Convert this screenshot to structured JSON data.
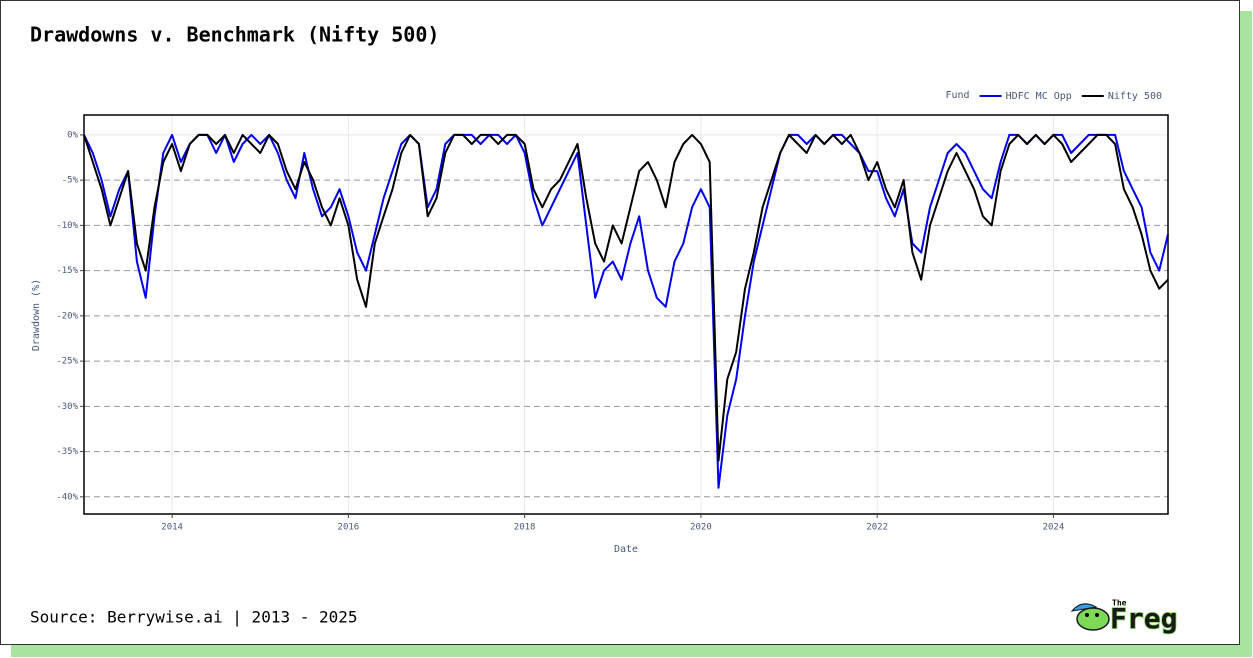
{
  "chart_data": {
    "type": "line",
    "title": "Drawdowns v. Benchmark (Nifty 500)",
    "x_label": "Date",
    "y_label": "Drawdown (%)",
    "legend_title": "Fund",
    "legend_position": "top-right",
    "grid": true,
    "xlim": [
      2013.0,
      2025.3
    ],
    "xticks": [
      2014,
      2016,
      2018,
      2020,
      2022,
      2024
    ],
    "ylim": [
      -41.9,
      2.2
    ],
    "yticks": [
      {
        "value": 0,
        "label": "0%"
      },
      {
        "value": -5,
        "label": "-5%"
      },
      {
        "value": -10,
        "label": "-10%"
      },
      {
        "value": -15,
        "label": "-15%"
      },
      {
        "value": -20,
        "label": "-20%"
      },
      {
        "value": -25,
        "label": "-25%"
      },
      {
        "value": -30,
        "label": "-30%"
      },
      {
        "value": -35,
        "label": "-35%"
      },
      {
        "value": -40,
        "label": "-40%"
      }
    ],
    "x": [
      2013.0,
      2013.1,
      2013.2,
      2013.3,
      2013.4,
      2013.5,
      2013.6,
      2013.7,
      2013.8,
      2013.9,
      2014.0,
      2014.1,
      2014.2,
      2014.3,
      2014.4,
      2014.5,
      2014.6,
      2014.7,
      2014.8,
      2014.9,
      2015.0,
      2015.1,
      2015.2,
      2015.3,
      2015.4,
      2015.5,
      2015.6,
      2015.7,
      2015.8,
      2015.9,
      2016.0,
      2016.1,
      2016.2,
      2016.3,
      2016.4,
      2016.5,
      2016.6,
      2016.7,
      2016.8,
      2016.9,
      2017.0,
      2017.1,
      2017.2,
      2017.3,
      2017.4,
      2017.5,
      2017.6,
      2017.7,
      2017.8,
      2017.9,
      2018.0,
      2018.1,
      2018.2,
      2018.3,
      2018.4,
      2018.5,
      2018.6,
      2018.7,
      2018.8,
      2018.9,
      2019.0,
      2019.1,
      2019.2,
      2019.3,
      2019.4,
      2019.5,
      2019.6,
      2019.7,
      2019.8,
      2019.9,
      2020.0,
      2020.1,
      2020.2,
      2020.3,
      2020.4,
      2020.5,
      2020.6,
      2020.7,
      2020.8,
      2020.9,
      2021.0,
      2021.1,
      2021.2,
      2021.3,
      2021.4,
      2021.5,
      2021.6,
      2021.7,
      2021.8,
      2021.9,
      2022.0,
      2022.1,
      2022.2,
      2022.3,
      2022.4,
      2022.5,
      2022.6,
      2022.7,
      2022.8,
      2022.9,
      2023.0,
      2023.1,
      2023.2,
      2023.3,
      2023.4,
      2023.5,
      2023.6,
      2023.7,
      2023.8,
      2023.9,
      2024.0,
      2024.1,
      2024.2,
      2024.3,
      2024.4,
      2024.5,
      2024.6,
      2024.7,
      2024.8,
      2024.9,
      2025.0,
      2025.1,
      2025.2,
      2025.3
    ],
    "series": [
      {
        "name": "HDFC MC Opp",
        "color": "#0000ee",
        "values": [
          0,
          -2,
          -5,
          -9,
          -6,
          -4,
          -14,
          -18,
          -9,
          -2,
          0,
          -3,
          -1,
          0,
          0,
          -2,
          0,
          -3,
          -1,
          0,
          -1,
          0,
          -2,
          -5,
          -7,
          -2,
          -6,
          -9,
          -8,
          -6,
          -9,
          -13,
          -15,
          -11,
          -7,
          -4,
          -1,
          0,
          -1,
          -8,
          -6,
          -1,
          0,
          0,
          0,
          -1,
          0,
          0,
          -1,
          0,
          -2,
          -7,
          -10,
          -8,
          -6,
          -4,
          -2,
          -10,
          -18,
          -15,
          -14,
          -16,
          -12,
          -9,
          -15,
          -18,
          -19,
          -14,
          -12,
          -8,
          -6,
          -8,
          -39,
          -31,
          -27,
          -20,
          -14,
          -10,
          -6,
          -2,
          0,
          0,
          -1,
          0,
          -1,
          0,
          0,
          -1,
          -2,
          -4,
          -4,
          -7,
          -9,
          -6,
          -12,
          -13,
          -8,
          -5,
          -2,
          -1,
          -2,
          -4,
          -6,
          -7,
          -3,
          0,
          0,
          -1,
          0,
          -1,
          0,
          0,
          -2,
          -1,
          0,
          0,
          0,
          0,
          -4,
          -6,
          -8,
          -13,
          -15,
          -11
        ]
      },
      {
        "name": "Nifty 500",
        "color": "#000000",
        "values": [
          0,
          -3,
          -6,
          -10,
          -7,
          -4,
          -12,
          -15,
          -8,
          -3,
          -1,
          -4,
          -1,
          0,
          0,
          -1,
          0,
          -2,
          0,
          -1,
          -2,
          0,
          -1,
          -4,
          -6,
          -3,
          -5,
          -8,
          -10,
          -7,
          -10,
          -16,
          -19,
          -12,
          -9,
          -6,
          -2,
          0,
          -1,
          -9,
          -7,
          -2,
          0,
          0,
          -1,
          0,
          0,
          -1,
          0,
          0,
          -1,
          -6,
          -8,
          -6,
          -5,
          -3,
          -1,
          -7,
          -12,
          -14,
          -10,
          -12,
          -8,
          -4,
          -3,
          -5,
          -8,
          -3,
          -1,
          0,
          -1,
          -3,
          -36,
          -27,
          -24,
          -17,
          -13,
          -8,
          -5,
          -2,
          0,
          -1,
          -2,
          0,
          -1,
          0,
          -1,
          0,
          -2,
          -5,
          -3,
          -6,
          -8,
          -5,
          -13,
          -16,
          -10,
          -7,
          -4,
          -2,
          -4,
          -6,
          -9,
          -10,
          -4,
          -1,
          0,
          -1,
          0,
          -1,
          0,
          -1,
          -3,
          -2,
          -1,
          0,
          0,
          -1,
          -6,
          -8,
          -11,
          -15,
          -17,
          -16
        ]
      }
    ]
  },
  "footer": {
    "source": "Source: Berrywise.ai | 2013 - 2025",
    "logo_small": "The",
    "logo_big": "Freg"
  }
}
